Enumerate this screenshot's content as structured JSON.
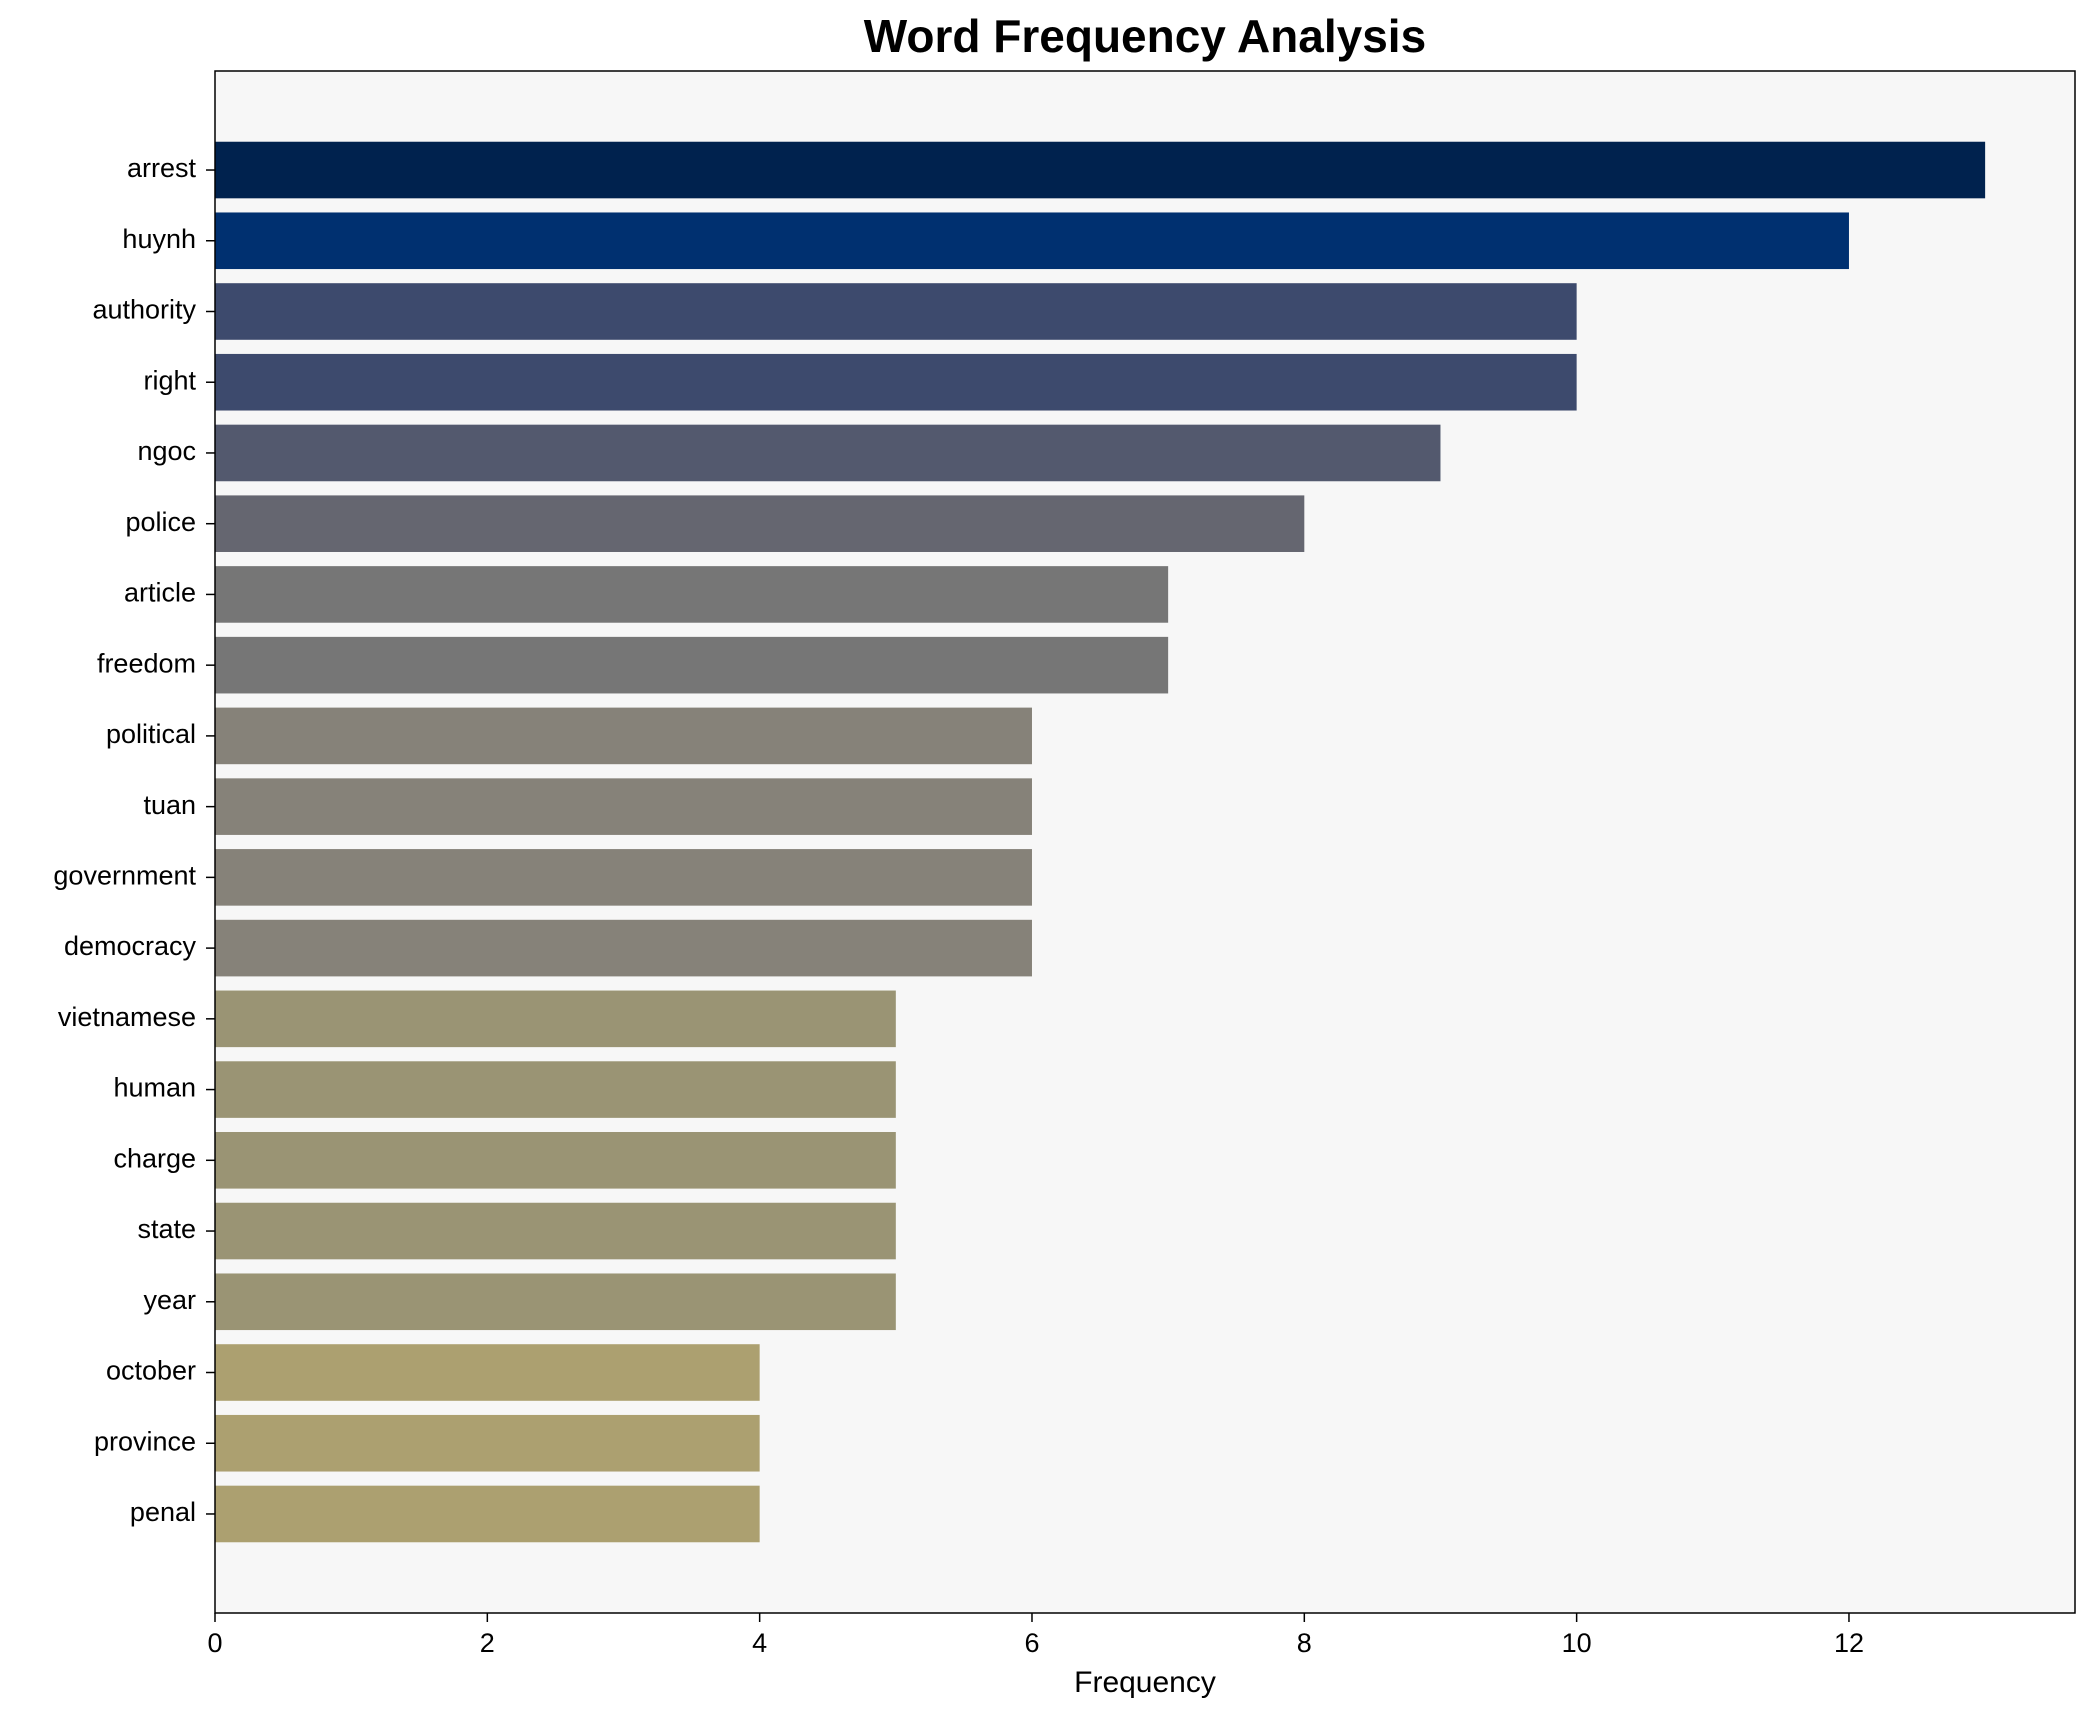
{
  "chart_data": {
    "type": "barh",
    "title": "Word Frequency Analysis",
    "xlabel": "Frequency",
    "categories": [
      "arrest",
      "huynh",
      "authority",
      "right",
      "ngoc",
      "police",
      "article",
      "freedom",
      "political",
      "tuan",
      "government",
      "democracy",
      "vietnamese",
      "human",
      "charge",
      "state",
      "year",
      "october",
      "province",
      "penal"
    ],
    "values": [
      13,
      12,
      10,
      10,
      9,
      8,
      7,
      7,
      6,
      6,
      6,
      6,
      5,
      5,
      5,
      5,
      5,
      4,
      4,
      4
    ],
    "colors": [
      "#00224e",
      "#003070",
      "#3d4a6d",
      "#3d4a6d",
      "#53596e",
      "#656670",
      "#767676",
      "#767676",
      "#868279",
      "#868279",
      "#868279",
      "#868279",
      "#9a9474",
      "#9a9474",
      "#9a9474",
      "#9a9474",
      "#9a9474",
      "#aca070",
      "#aca070",
      "#aca070"
    ],
    "xlim": [
      0,
      13.66
    ],
    "xticks": [
      0,
      2,
      4,
      6,
      8,
      10,
      12
    ]
  }
}
